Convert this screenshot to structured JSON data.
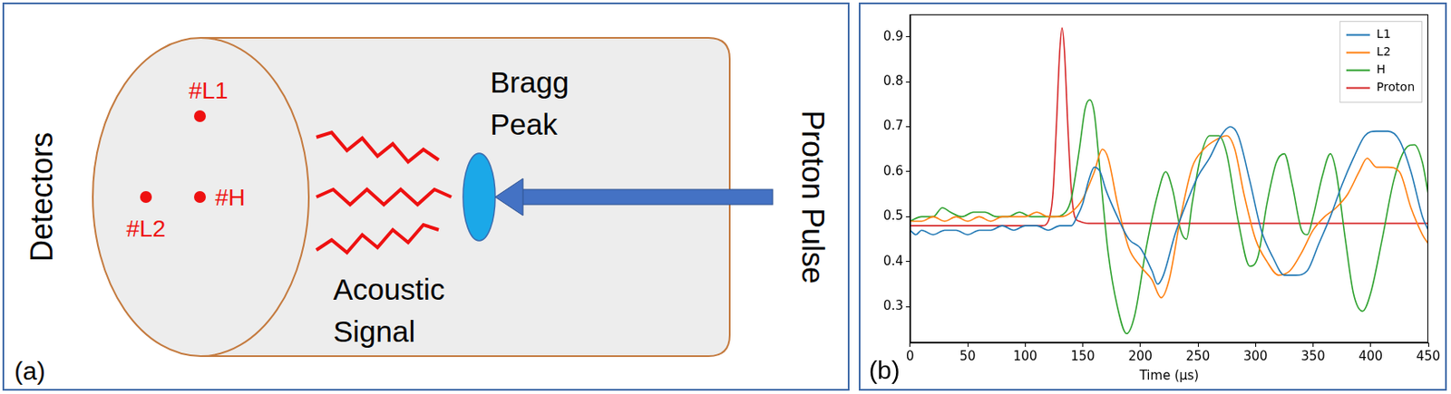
{
  "panel_labels": [
    "(a)",
    "(b)"
  ],
  "diagram": {
    "side_label": "Detectors",
    "detectors": [
      {
        "label": "#L1"
      },
      {
        "label": "#L2"
      },
      {
        "label": "#H"
      }
    ],
    "target_label": "Bragg Peak",
    "signal_label": "Acoustic Signal",
    "beam_label": "Proton Pulse"
  },
  "chart_data": {
    "type": "line",
    "x_label": "Time (μs)",
    "xlim": [
      0,
      450
    ],
    "xticks": [
      0,
      50,
      100,
      150,
      200,
      250,
      300,
      350,
      400,
      450
    ],
    "ylim": [
      0.22,
      0.95
    ],
    "yticks": [
      0.3,
      0.4,
      0.5,
      0.6,
      0.7,
      0.8,
      0.9
    ],
    "grid": false,
    "legend": "upper right",
    "series": [
      {
        "name": "L1",
        "color": "#1f77b4",
        "x": [
          0,
          5,
          10,
          20,
          30,
          40,
          50,
          60,
          70,
          80,
          90,
          100,
          110,
          120,
          130,
          140,
          145,
          150,
          155,
          160,
          165,
          170,
          180,
          190,
          200,
          210,
          215,
          220,
          230,
          240,
          250,
          260,
          270,
          278,
          285,
          295,
          305,
          315,
          325,
          335,
          345,
          355,
          365,
          375,
          385,
          395,
          405,
          415,
          425,
          435,
          445,
          450
        ],
        "values": [
          0.47,
          0.46,
          0.47,
          0.46,
          0.47,
          0.47,
          0.46,
          0.47,
          0.47,
          0.48,
          0.47,
          0.48,
          0.48,
          0.47,
          0.48,
          0.48,
          0.5,
          0.53,
          0.58,
          0.61,
          0.6,
          0.56,
          0.5,
          0.45,
          0.43,
          0.38,
          0.35,
          0.37,
          0.46,
          0.53,
          0.59,
          0.63,
          0.68,
          0.7,
          0.68,
          0.58,
          0.47,
          0.41,
          0.37,
          0.37,
          0.38,
          0.44,
          0.5,
          0.57,
          0.63,
          0.68,
          0.69,
          0.69,
          0.67,
          0.6,
          0.5,
          0.47
        ]
      },
      {
        "name": "L2",
        "color": "#ff7f0e",
        "x": [
          0,
          10,
          20,
          30,
          40,
          50,
          60,
          70,
          80,
          90,
          100,
          110,
          120,
          130,
          140,
          150,
          160,
          167,
          172,
          180,
          190,
          200,
          210,
          218,
          225,
          235,
          245,
          255,
          265,
          275,
          282,
          290,
          300,
          310,
          320,
          330,
          340,
          350,
          360,
          370,
          380,
          390,
          397,
          405,
          415,
          425,
          435,
          445,
          450
        ],
        "values": [
          0.49,
          0.49,
          0.5,
          0.49,
          0.5,
          0.49,
          0.5,
          0.49,
          0.5,
          0.5,
          0.5,
          0.51,
          0.5,
          0.5,
          0.51,
          0.54,
          0.6,
          0.65,
          0.63,
          0.53,
          0.43,
          0.39,
          0.36,
          0.32,
          0.36,
          0.5,
          0.61,
          0.65,
          0.67,
          0.68,
          0.65,
          0.55,
          0.45,
          0.4,
          0.37,
          0.38,
          0.42,
          0.47,
          0.5,
          0.52,
          0.55,
          0.6,
          0.63,
          0.61,
          0.61,
          0.6,
          0.52,
          0.46,
          0.44
        ]
      },
      {
        "name": "H",
        "color": "#2ca02c",
        "x": [
          0,
          10,
          20,
          28,
          35,
          45,
          55,
          65,
          75,
          85,
          95,
          105,
          115,
          125,
          135,
          140,
          147,
          152,
          156,
          160,
          165,
          172,
          180,
          188,
          195,
          205,
          215,
          222,
          228,
          235,
          240,
          245,
          252,
          260,
          268,
          275,
          285,
          295,
          302,
          310,
          318,
          325,
          332,
          340,
          345,
          350,
          358,
          365,
          370,
          378,
          385,
          393,
          400,
          410,
          420,
          430,
          438,
          445,
          450
        ],
        "values": [
          0.49,
          0.5,
          0.5,
          0.52,
          0.51,
          0.5,
          0.51,
          0.51,
          0.5,
          0.5,
          0.51,
          0.5,
          0.5,
          0.5,
          0.51,
          0.54,
          0.65,
          0.74,
          0.76,
          0.73,
          0.6,
          0.42,
          0.3,
          0.24,
          0.28,
          0.43,
          0.55,
          0.6,
          0.56,
          0.47,
          0.45,
          0.53,
          0.63,
          0.68,
          0.68,
          0.64,
          0.49,
          0.39,
          0.41,
          0.53,
          0.62,
          0.64,
          0.57,
          0.47,
          0.46,
          0.5,
          0.59,
          0.64,
          0.6,
          0.45,
          0.33,
          0.29,
          0.33,
          0.45,
          0.58,
          0.65,
          0.66,
          0.62,
          0.55
        ]
      },
      {
        "name": "Proton",
        "color": "#d62728",
        "x": [
          0,
          50,
          100,
          115,
          120,
          124,
          127,
          130,
          132,
          134,
          137,
          140,
          143,
          147,
          155,
          200,
          300,
          400,
          450
        ],
        "values": [
          0.48,
          0.48,
          0.48,
          0.48,
          0.49,
          0.55,
          0.7,
          0.87,
          0.92,
          0.87,
          0.7,
          0.56,
          0.5,
          0.49,
          0.485,
          0.485,
          0.485,
          0.485,
          0.485
        ]
      }
    ]
  }
}
